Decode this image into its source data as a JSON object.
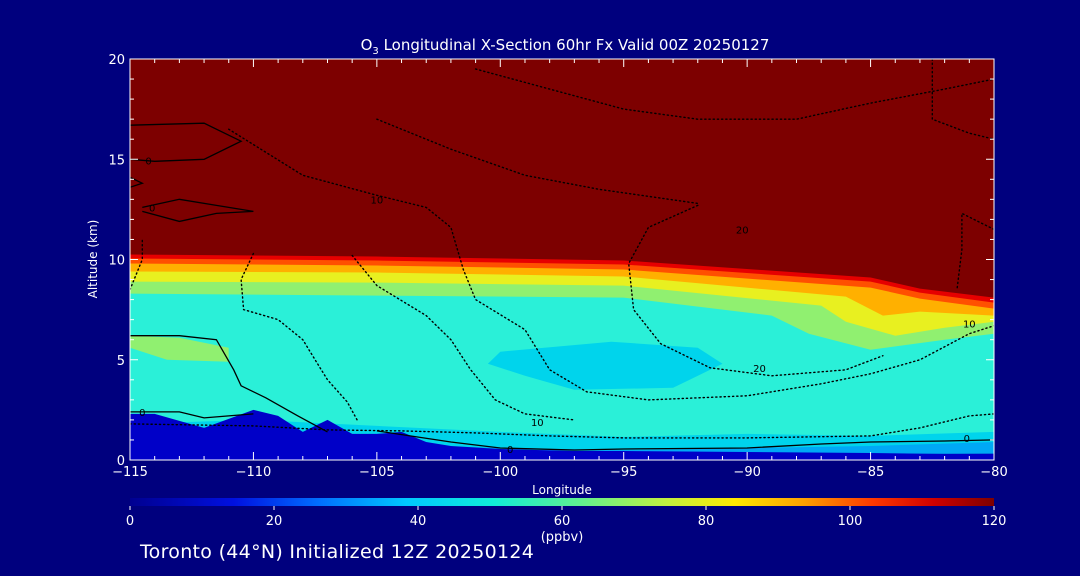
{
  "chart_data": {
    "type": "heatmap",
    "title": {
      "prefix": "O",
      "sub": "3",
      "rest": " Longitudinal X-Section 60hr  Fx Valid 00Z 20250127"
    },
    "xlabel": "Longitude",
    "ylabel": "Altitude (km)",
    "xlim": [
      -115,
      -80
    ],
    "ylim": [
      0,
      20
    ],
    "xticks": [
      -115,
      -110,
      -105,
      -100,
      -95,
      -90,
      -85,
      -80
    ],
    "xtick_labels": [
      "−115",
      "−110",
      "−105",
      "−100",
      "−95",
      "−90",
      "−85",
      "−80"
    ],
    "yticks": [
      0,
      5,
      10,
      15,
      20
    ],
    "ytick_labels": [
      "0",
      "5",
      "10",
      "15",
      "20"
    ],
    "colorbar": {
      "range": [
        0,
        120
      ],
      "ticks": [
        "0",
        "20",
        "40",
        "60",
        "80",
        "100",
        "120"
      ],
      "unit": "(ppbv)"
    },
    "fill_layers": [
      {
        "value": 120,
        "color": "#7d0000",
        "top": [
          [
            -115,
            20
          ],
          [
            -80,
            20
          ]
        ]
      },
      {
        "value": 105,
        "color": "#e60000",
        "top": [
          [
            -115,
            10.25
          ],
          [
            -105,
            10.15
          ],
          [
            -95,
            9.95
          ],
          [
            -85,
            9.1
          ],
          [
            -83,
            8.55
          ],
          [
            -80,
            8.1
          ]
        ]
      },
      {
        "value": 95,
        "color": "#ff5000",
        "top": [
          [
            -115,
            10.05
          ],
          [
            -105,
            9.95
          ],
          [
            -95,
            9.75
          ],
          [
            -85,
            8.9
          ],
          [
            -83,
            8.35
          ],
          [
            -80,
            7.85
          ]
        ]
      },
      {
        "value": 85,
        "color": "#ffb000",
        "top": [
          [
            -115,
            9.8
          ],
          [
            -105,
            9.7
          ],
          [
            -95,
            9.5
          ],
          [
            -85,
            8.6
          ],
          [
            -83,
            8.05
          ],
          [
            -80,
            7.55
          ]
        ]
      },
      {
        "value": 75,
        "color": "#e8f020",
        "top": [
          [
            -115,
            9.4
          ],
          [
            -105,
            9.35
          ],
          [
            -95,
            9.15
          ],
          [
            -86,
            8.15
          ],
          [
            -84.5,
            7.2
          ],
          [
            -83,
            7.4
          ],
          [
            -80,
            7.2
          ]
        ]
      },
      {
        "value": 65,
        "color": "#90f070",
        "top": [
          [
            -115,
            8.9
          ],
          [
            -105,
            8.85
          ],
          [
            -95,
            8.7
          ],
          [
            -87,
            7.7
          ],
          [
            -86,
            6.9
          ],
          [
            -84,
            6.2
          ],
          [
            -82,
            6.6
          ],
          [
            -80,
            6.9
          ]
        ]
      },
      {
        "value": 55,
        "color": "#2af0d8",
        "top": [
          [
            -115,
            8.3
          ],
          [
            -105,
            8.2
          ],
          [
            -95,
            8.1
          ],
          [
            -89,
            7.2
          ],
          [
            -87.5,
            6.3
          ],
          [
            -85,
            5.5
          ],
          [
            -82,
            6.0
          ],
          [
            -80,
            6.3
          ]
        ]
      },
      {
        "value": 45,
        "color": "#00d4ec",
        "top": [
          [
            -115,
            1.8
          ],
          [
            -110,
            2.0
          ],
          [
            -105,
            1.7
          ],
          [
            -100,
            1.4
          ],
          [
            -95,
            1.15
          ],
          [
            -90,
            1.3
          ],
          [
            -85,
            1.2
          ],
          [
            -80,
            1.4
          ]
        ]
      },
      {
        "value": 35,
        "color": "#00a8f5",
        "top": [
          [
            -115,
            0.7
          ],
          [
            -110,
            0.7
          ],
          [
            -105,
            0.8
          ],
          [
            -100,
            0.6
          ],
          [
            -95,
            0.5
          ],
          [
            -90,
            0.6
          ],
          [
            -85,
            0.7
          ],
          [
            -80,
            0.9
          ]
        ]
      },
      {
        "value": 25,
        "color": "#0070e0",
        "top": [
          [
            -115,
            0.25
          ],
          [
            -110,
            0.3
          ],
          [
            -105,
            0.3
          ],
          [
            -100,
            0.25
          ],
          [
            -95,
            0.2
          ],
          [
            -90,
            0.25
          ],
          [
            -85,
            0.3
          ],
          [
            -80,
            0.35
          ]
        ]
      }
    ],
    "patches": [
      {
        "value": 65,
        "color": "#90f070",
        "points": [
          [
            -115,
            6.2
          ],
          [
            -113,
            6.1
          ],
          [
            -111,
            5.6
          ],
          [
            -111,
            4.9
          ],
          [
            -113.5,
            5.0
          ],
          [
            -115,
            5.6
          ]
        ]
      },
      {
        "value": 45,
        "color": "#00d4ec",
        "points": [
          [
            -100,
            5.4
          ],
          [
            -95.5,
            5.9
          ],
          [
            -92,
            5.6
          ],
          [
            -91,
            4.8
          ],
          [
            -93,
            3.6
          ],
          [
            -97,
            3.5
          ],
          [
            -99,
            4.2
          ],
          [
            -100.5,
            4.8
          ]
        ]
      }
    ],
    "terrain": {
      "color": "#0000c8",
      "points": [
        [
          -115,
          2.3
        ],
        [
          -114,
          2.3
        ],
        [
          -112,
          1.6
        ],
        [
          -110,
          2.5
        ],
        [
          -109,
          2.2
        ],
        [
          -108,
          1.4
        ],
        [
          -107,
          2.0
        ],
        [
          -106,
          1.3
        ],
        [
          -105,
          1.3
        ],
        [
          -104,
          1.4
        ],
        [
          -103,
          0.9
        ],
        [
          -102,
          0.7
        ],
        [
          -100,
          0.55
        ],
        [
          -97,
          0.45
        ],
        [
          -95,
          0.45
        ],
        [
          -90,
          0.4
        ],
        [
          -85,
          0.35
        ],
        [
          -82,
          0.3
        ],
        [
          -80,
          0.3
        ]
      ]
    },
    "contours": [
      {
        "label": "0",
        "style": "solid",
        "points": [
          [
            -115,
            16.7
          ],
          [
            -112,
            16.8
          ],
          [
            -110.5,
            15.9
          ],
          [
            -112,
            15.0
          ],
          [
            -114,
            14.9
          ],
          [
            -115,
            15.0
          ]
        ],
        "labels_at": [
          [
            -114.25,
            14.95
          ]
        ]
      },
      {
        "label": "0",
        "style": "solid",
        "points": [
          [
            -115,
            14.1
          ],
          [
            -114.5,
            13.8
          ],
          [
            -115,
            13.6
          ]
        ],
        "labels_at": []
      },
      {
        "label": "0",
        "style": "solid",
        "points": [
          [
            -114.5,
            12.6
          ],
          [
            -113,
            13.0
          ],
          [
            -111.5,
            12.7
          ],
          [
            -110,
            12.4
          ],
          [
            -111.5,
            12.3
          ],
          [
            -113,
            11.9
          ],
          [
            -114.5,
            12.4
          ]
        ],
        "labels_at": [
          [
            -114.1,
            12.6
          ]
        ]
      },
      {
        "label": "",
        "style": "solid",
        "points": [
          [
            -115,
            6.2
          ],
          [
            -113,
            6.2
          ],
          [
            -111.5,
            6.0
          ],
          [
            -110.8,
            4.5
          ],
          [
            -110.5,
            3.7
          ],
          [
            -109.5,
            3.1
          ],
          [
            -108.2,
            2.2
          ],
          [
            -107,
            1.4
          ]
        ],
        "labels_at": []
      },
      {
        "label": "0",
        "style": "solid",
        "points": [
          [
            -115,
            2.4
          ],
          [
            -113,
            2.4
          ],
          [
            -112,
            2.1
          ],
          [
            -111,
            2.2
          ],
          [
            -110,
            2.3
          ]
        ],
        "labels_at": [
          [
            -114.5,
            2.4
          ]
        ]
      },
      {
        "label": "0",
        "style": "solid",
        "points": [
          [
            -105,
            1.45
          ],
          [
            -102,
            0.9
          ],
          [
            -100,
            0.6
          ],
          [
            -97,
            0.5
          ],
          [
            -95,
            0.55
          ],
          [
            -90,
            0.6
          ],
          [
            -87,
            0.8
          ],
          [
            -85,
            0.9
          ],
          [
            -82,
            0.95
          ],
          [
            -80,
            1.0
          ]
        ],
        "labels_at": [
          [
            -99.6,
            0.55
          ],
          [
            -81.1,
            1.1
          ]
        ]
      },
      {
        "label": "10",
        "style": "dotted",
        "points": [
          [
            -111,
            16.5
          ],
          [
            -108,
            14.2
          ],
          [
            -105,
            13.2
          ],
          [
            -103,
            12.6
          ],
          [
            -102,
            11.6
          ],
          [
            -101.5,
            9.5
          ],
          [
            -101,
            8.0
          ],
          [
            -99,
            6.5
          ],
          [
            -98,
            4.5
          ],
          [
            -96.5,
            3.4
          ],
          [
            -94,
            3.0
          ],
          [
            -90,
            3.2
          ],
          [
            -87,
            3.8
          ],
          [
            -85,
            4.3
          ],
          [
            -83,
            5.0
          ],
          [
            -81,
            6.3
          ],
          [
            -80,
            6.7
          ]
        ],
        "labels_at": [
          [
            -105,
            13.0
          ],
          [
            -81,
            6.8
          ]
        ]
      },
      {
        "label": "20",
        "style": "dotted",
        "points": [
          [
            -92,
            12.7
          ],
          [
            -94,
            11.6
          ],
          [
            -94.8,
            9.8
          ],
          [
            -94.6,
            7.5
          ],
          [
            -93.5,
            5.8
          ],
          [
            -91.5,
            4.6
          ],
          [
            -89,
            4.2
          ],
          [
            -86,
            4.5
          ],
          [
            -84.5,
            5.2
          ]
        ],
        "labels_at": [
          [
            -90.2,
            11.5
          ],
          [
            -89.5,
            4.6
          ]
        ]
      },
      {
        "label": "10",
        "style": "dotted",
        "points": [
          [
            -115,
            1.8
          ],
          [
            -110,
            1.7
          ],
          [
            -107,
            1.5
          ],
          [
            -104,
            1.45
          ],
          [
            -101,
            1.35
          ],
          [
            -98,
            1.2
          ],
          [
            -95,
            1.1
          ],
          [
            -90,
            1.1
          ],
          [
            -85,
            1.2
          ],
          [
            -83,
            1.6
          ],
          [
            -81,
            2.2
          ],
          [
            -80,
            2.3
          ]
        ],
        "labels_at": [
          [
            -98.5,
            1.9
          ]
        ]
      },
      {
        "label": "",
        "style": "dotted",
        "points": [
          [
            -101,
            19.5
          ],
          [
            -98,
            18.5
          ],
          [
            -95,
            17.5
          ],
          [
            -92,
            17.0
          ],
          [
            -88,
            17.0
          ],
          [
            -85,
            17.8
          ],
          [
            -82,
            18.5
          ],
          [
            -80,
            19.0
          ]
        ],
        "labels_at": []
      },
      {
        "label": "",
        "style": "dotted",
        "points": [
          [
            -105,
            17.0
          ],
          [
            -102,
            15.5
          ],
          [
            -99,
            14.2
          ],
          [
            -96,
            13.5
          ],
          [
            -92,
            12.8
          ]
        ],
        "labels_at": []
      },
      {
        "label": "",
        "style": "dotted",
        "points": [
          [
            -82.5,
            20
          ],
          [
            -82.5,
            17
          ],
          [
            -81,
            16.3
          ],
          [
            -80,
            16.0
          ]
        ],
        "labels_at": []
      },
      {
        "label": "",
        "style": "dotted",
        "points": [
          [
            -80,
            11.5
          ],
          [
            -81.3,
            12.3
          ],
          [
            -81.3,
            10.5
          ],
          [
            -81.5,
            8.5
          ]
        ],
        "labels_at": []
      },
      {
        "label": "",
        "style": "dotted",
        "points": [
          [
            -115,
            8.5
          ],
          [
            -114.5,
            10.0
          ],
          [
            -114.5,
            11.0
          ]
        ],
        "labels_at": []
      },
      {
        "label": "",
        "style": "dotted",
        "points": [
          [
            -110,
            10.3
          ],
          [
            -110.5,
            9.0
          ],
          [
            -110.4,
            7.5
          ],
          [
            -109,
            7.0
          ],
          [
            -108,
            6.0
          ],
          [
            -107.5,
            5.0
          ],
          [
            -107,
            4.0
          ],
          [
            -106.2,
            2.9
          ],
          [
            -105.8,
            2.0
          ]
        ],
        "labels_at": []
      },
      {
        "label": "",
        "style": "dotted",
        "points": [
          [
            -106,
            10.2
          ],
          [
            -105,
            8.7
          ],
          [
            -103,
            7.2
          ],
          [
            -102,
            6.0
          ],
          [
            -101.2,
            4.5
          ],
          [
            -100.2,
            3.0
          ],
          [
            -99,
            2.3
          ],
          [
            -97,
            2.0
          ]
        ],
        "labels_at": []
      }
    ]
  },
  "footer": "Toronto (44°N) Initialized 12Z 20250124"
}
